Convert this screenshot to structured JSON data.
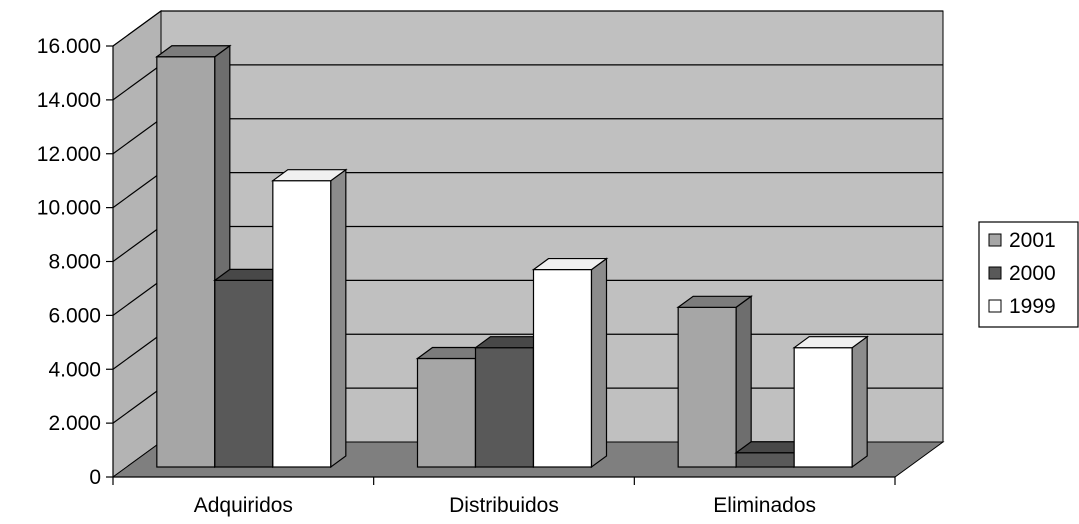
{
  "chart_data": {
    "type": "bar",
    "subtype": "3d-clustered-column",
    "title": "",
    "xlabel": "",
    "ylabel": "",
    "categories": [
      "Adquiridos",
      "Distribuidos",
      "Eliminados"
    ],
    "series": [
      {
        "name": "2001",
        "values": [
          15600,
          4400,
          6300
        ],
        "color": "#a6a6a6",
        "side_color": "#6e6e6e",
        "top_color": "#7c7c7c"
      },
      {
        "name": "2000",
        "values": [
          7300,
          4800,
          900
        ],
        "color": "#595959",
        "side_color": "#3c3c3c",
        "top_color": "#484848"
      },
      {
        "name": "1999",
        "values": [
          11000,
          7700,
          4800
        ],
        "color": "#ffffff",
        "side_color": "#8c8c8c",
        "top_color": "#f0f0f0"
      }
    ],
    "ylim": [
      0,
      16000
    ],
    "yticks": [
      0,
      2000,
      4000,
      6000,
      8000,
      10000,
      12000,
      14000,
      16000
    ],
    "ytick_labels": [
      "0",
      "2.000",
      "4.000",
      "6.000",
      "8.000",
      "10.000",
      "12.000",
      "14.000",
      "16.000"
    ],
    "grid": true,
    "legend_position": "right",
    "colors": {
      "wall": "#c0c0c0",
      "side_wall": "#b4b4b4",
      "floor": "#7f7f7f",
      "gridline": "#000000"
    }
  }
}
